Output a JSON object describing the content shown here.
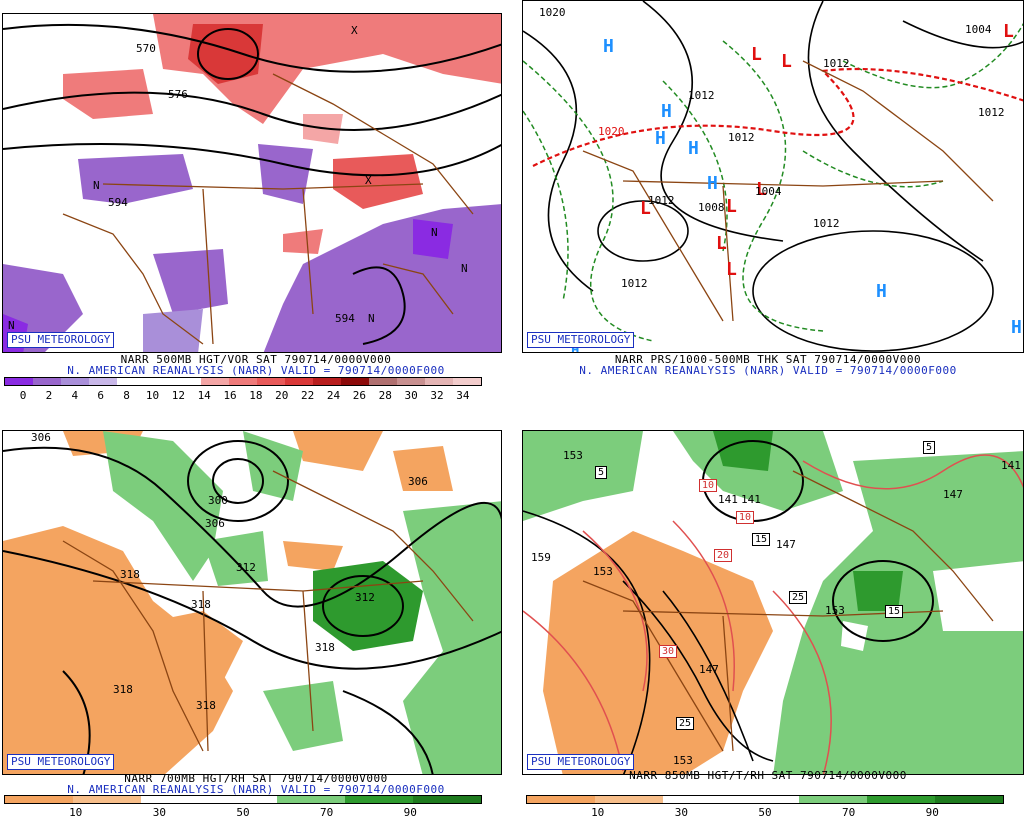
{
  "panels": [
    {
      "badge": "PSU METEOROLOGY",
      "caption1": "NARR 500MB HGT/VOR SAT 790714/0000V000",
      "caption2": "N. AMERICAN REANALYSIS (NARR) VALID = 790714/0000F000",
      "colorbar_colors": [
        "#8a2be2",
        "#9966cc",
        "#a98fd9",
        "#c8b7e8",
        "#ffffff",
        "#ffffff",
        "#ffffff",
        "#f4a6a6",
        "#ef7b7b",
        "#e85a5a",
        "#d93838",
        "#b81e1e",
        "#8c0a0a",
        "#b07070",
        "#c89090",
        "#e4b4b4",
        "#f2cccc"
      ],
      "colorbar_labels": [
        "0",
        "2",
        "4",
        "6",
        "8",
        "10",
        "12",
        "14",
        "16",
        "18",
        "20",
        "22",
        "24",
        "26",
        "28",
        "30",
        "32",
        "34"
      ],
      "map_labels": [
        "570",
        "576",
        "594",
        "594",
        "N",
        "N",
        "N",
        "N",
        "N",
        "X",
        "X"
      ]
    },
    {
      "badge": "PSU METEOROLOGY",
      "caption1": "NARR PRS/1000-500MB THK SAT 790714/0000V000",
      "caption2": "N. AMERICAN REANALYSIS (NARR) VALID = 790714/0000F000",
      "highs": [
        "H",
        "H",
        "H",
        "H",
        "H",
        "H",
        "H",
        "H"
      ],
      "lows": [
        "L",
        "L",
        "L",
        "L",
        "L",
        "L",
        "L",
        "L"
      ],
      "map_labels": [
        "1020",
        "1012",
        "1012",
        "1012",
        "1012",
        "1012",
        "1004",
        "1008",
        "1012",
        "1004",
        "1012",
        "1020"
      ]
    },
    {
      "badge": "PSU METEOROLOGY",
      "caption1": "NARR 700MB HGT/RH SAT 790714/0000V000",
      "caption2": "N. AMERICAN REANALYSIS (NARR) VALID = 790714/0000F000",
      "colorbar_colors": [
        "#f4a460",
        "#f7be8a",
        "#ffffff",
        "#ffffff",
        "#7ccd7c",
        "#2e9a2e",
        "#1e7a1e"
      ],
      "colorbar_labels": [
        "10",
        "30",
        "50",
        "70",
        "90"
      ],
      "map_labels": [
        "306",
        "306",
        "300",
        "306",
        "312",
        "318",
        "318",
        "318",
        "312",
        "318",
        "318",
        "318"
      ]
    },
    {
      "badge": "PSU METEOROLOGY",
      "caption1": "NARR 850MB HGT/T/RH SAT 790714/0000V000",
      "colorbar_colors": [
        "#f4a460",
        "#f7be8a",
        "#ffffff",
        "#ffffff",
        "#7ccd7c",
        "#2e9a2e",
        "#1e7a1e"
      ],
      "colorbar_labels": [
        "10",
        "30",
        "50",
        "70",
        "90"
      ],
      "map_labels": [
        "153",
        "159",
        "153",
        "147",
        "141",
        "147",
        "147",
        "153",
        "153",
        "141",
        "141"
      ],
      "boxed_labels": [
        "5",
        "5",
        "10",
        "10",
        "15",
        "20",
        "25",
        "30",
        "25",
        "15",
        "20"
      ]
    }
  ],
  "colors": {
    "accent_blue": "#1a2fbf",
    "map_brown": "#8b4513",
    "high_blue": "#1e90ff",
    "low_red": "#e01010"
  }
}
